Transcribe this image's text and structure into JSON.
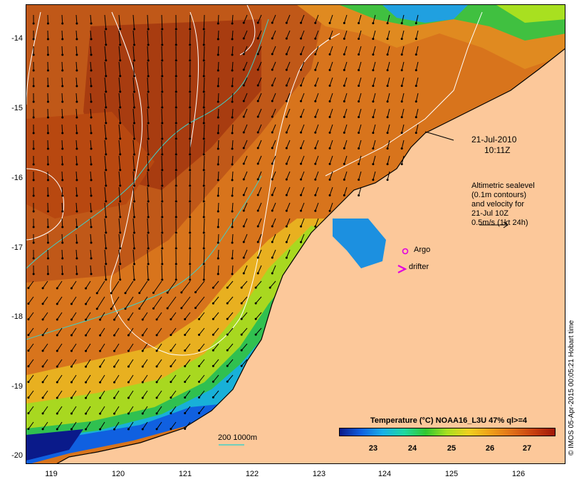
{
  "map": {
    "date_label": "21-Jul-2010",
    "time_label": "10:11Z",
    "altimetry_note": [
      "Altimetric sealevel",
      "(0.1m contours)",
      "and velocity for",
      "21-Jul 10Z",
      "0.5m/s (1kt 24h)"
    ],
    "argo_label": "Argo",
    "drifter_label": "drifter",
    "scale_label": "200  1000m",
    "credit": "© IMOS 05-Apr-2015 00:05:21 Hobart time",
    "lat_labels": [
      "-14",
      "-15",
      "-16",
      "-17",
      "-18",
      "-19",
      "-20"
    ],
    "lon_labels": [
      "119",
      "120",
      "121",
      "122",
      "123",
      "124",
      "125",
      "126"
    ],
    "colorbar": {
      "title": "Temperature (°C) NOAA16_L3U 47% ql>=4",
      "ticks": [
        "23",
        "24",
        "25",
        "26",
        "27"
      ],
      "colors": [
        "#0a1a8a",
        "#1060e0",
        "#18b0e8",
        "#20d8a0",
        "#30c830",
        "#a8e020",
        "#f0d020",
        "#f0a018",
        "#e07018",
        "#c84010",
        "#a01808"
      ]
    },
    "colors": {
      "land": "#fcc89a",
      "argo": "#e000e0",
      "drifter": "#e000e0",
      "isobath": "#40d0c8",
      "sealevel_contour": "#ffffff"
    }
  }
}
